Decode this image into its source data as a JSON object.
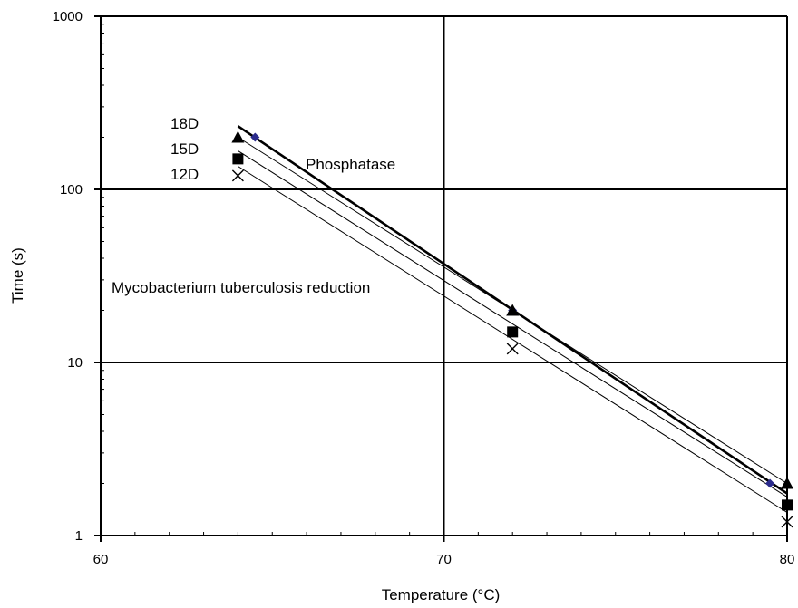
{
  "chart_data": {
    "type": "scatter",
    "xlabel": "Temperature  (°C)",
    "ylabel": "Time  (s)",
    "xlim": [
      60,
      80
    ],
    "ylim": [
      1,
      1000
    ],
    "y_scale": "log",
    "grid": true,
    "x_ticks": [
      60,
      70,
      80
    ],
    "x_tick_labels": [
      "60",
      "70",
      "80"
    ],
    "y_ticks": [
      1,
      10,
      100,
      1000
    ],
    "y_tick_labels": [
      "1",
      "10",
      "100",
      "1000"
    ],
    "annotations": {
      "label_18d": "18D",
      "label_15d": "15D",
      "label_12d": "12D",
      "phosphatase": "Phosphatase",
      "mycobacterium": "Mycobacterium tuberculosis reduction"
    },
    "colors": {
      "phosphatase_marker": "#2b2b8c",
      "lines": "#000000"
    },
    "series": [
      {
        "marker": "diamond",
        "x": [
          64.5,
          72.0,
          79.5
        ],
        "y": [
          200,
          20,
          2
        ]
      },
      {
        "marker": "triangle",
        "x": [
          64.0,
          72.0,
          80.0
        ],
        "y": [
          200,
          20,
          2
        ]
      },
      {
        "marker": "square",
        "x": [
          64.0,
          72.0,
          80.0
        ],
        "y": [
          150,
          15,
          1.5
        ]
      },
      {
        "marker": "cross",
        "x": [
          64.0,
          72.0,
          80.0
        ],
        "y": [
          120,
          12,
          1.2
        ]
      }
    ],
    "lines": [
      {
        "style": "thick",
        "x": [
          64.0,
          80.0
        ],
        "y": [
          232,
          1.75
        ]
      },
      {
        "style": "thin",
        "x": [
          64.0,
          80.0
        ],
        "y": [
          200,
          2.0
        ]
      },
      {
        "style": "thin",
        "x": [
          64.0,
          80.0
        ],
        "y": [
          167,
          1.67
        ]
      },
      {
        "style": "thin",
        "x": [
          64.0,
          80.0
        ],
        "y": [
          136,
          1.36
        ]
      }
    ]
  }
}
